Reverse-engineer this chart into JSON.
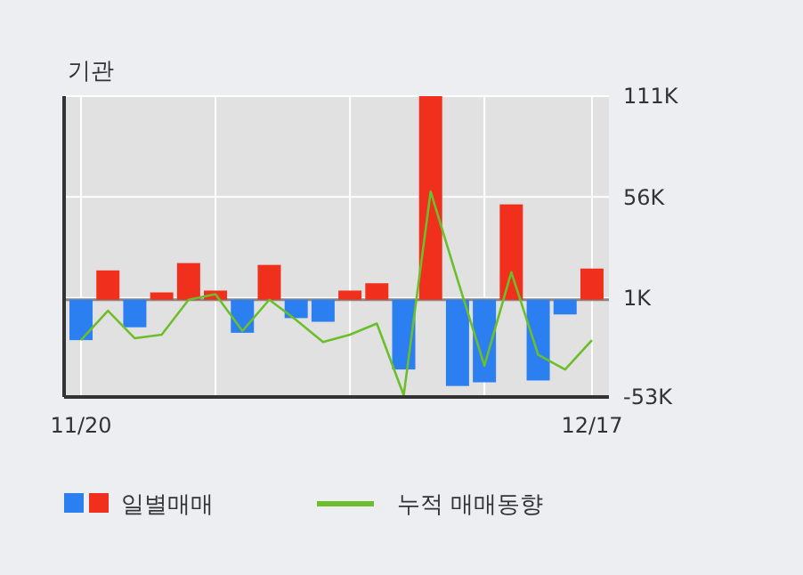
{
  "chart_data": {
    "type": "bar",
    "title": "기관",
    "categories": [
      "11/20",
      null,
      null,
      null,
      null,
      null,
      null,
      null,
      null,
      null,
      null,
      null,
      null,
      null,
      null,
      null,
      null,
      null,
      null,
      "12/17"
    ],
    "series": [
      {
        "name": "일별매매",
        "colors": [
          "#2b7ff0",
          "#f0301c",
          "#2b7ff0",
          "#f0301c",
          "#f0301c",
          "#f0301c",
          "#2b7ff0",
          "#f0301c",
          "#2b7ff0",
          "#2b7ff0",
          "#f0301c",
          "#f0301c",
          "#2b7ff0",
          "#f0301c",
          "#2b7ff0",
          "#2b7ff0",
          "#f0301c",
          "#2b7ff0",
          "#2b7ff0",
          "#f0301c"
        ],
        "values": [
          -22,
          16,
          -15,
          4,
          20,
          5,
          -18,
          19,
          -10,
          -12,
          5,
          9,
          -38,
          111,
          -47,
          -45,
          52,
          -44,
          -8,
          17
        ]
      },
      {
        "name": "누적 매매동향",
        "type": "line",
        "color": "#6cbf2a",
        "values": [
          -22,
          -6,
          -21,
          -19,
          0,
          3,
          -17,
          0,
          -11,
          -23,
          -19,
          -13,
          -52,
          59,
          11,
          -36,
          15,
          -30,
          -38,
          -22
        ]
      }
    ],
    "ylim": [
      -53,
      111
    ],
    "yticks": [
      {
        "value": 111,
        "label": "111K"
      },
      {
        "value": 56,
        "label": "56K"
      },
      {
        "value": 1,
        "label": "1K"
      },
      {
        "value": -53,
        "label": "-53K"
      }
    ],
    "grid": true,
    "legend": "bottom"
  }
}
